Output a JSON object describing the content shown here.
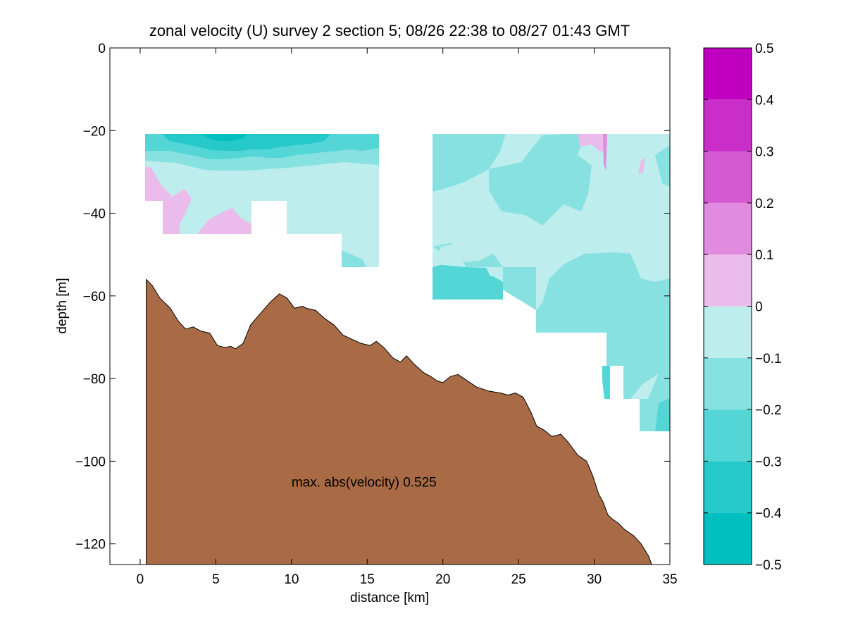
{
  "chart_data": {
    "type": "contour",
    "title": "zonal velocity (U) survey 2 section 5; 08/26 22:38 to 08/27 01:43 GMT",
    "xlabel": "distance [km]",
    "ylabel": "depth [m]",
    "xlim": [
      -2,
      35
    ],
    "ylim": [
      -125,
      0
    ],
    "xticks": [
      0,
      5,
      10,
      15,
      20,
      25,
      30,
      35
    ],
    "yticks": [
      0,
      -20,
      -40,
      -60,
      -80,
      -100,
      -120
    ],
    "annotation": {
      "text": "max. abs(velocity) 0.525",
      "x": 10,
      "y": -105
    },
    "colorbar": {
      "ticks": [
        0.5,
        0.4,
        0.3,
        0.2,
        0.1,
        0,
        -0.1,
        -0.2,
        -0.3,
        -0.4,
        -0.5
      ],
      "levels": [
        {
          "from": -0.5,
          "to": -0.4,
          "color": "#00bfbf"
        },
        {
          "from": -0.4,
          "to": -0.3,
          "color": "#26c9c9"
        },
        {
          "from": -0.3,
          "to": -0.2,
          "color": "#55d6d6"
        },
        {
          "from": -0.2,
          "to": -0.1,
          "color": "#88e1e1"
        },
        {
          "from": -0.1,
          "to": 0,
          "color": "#bdeded"
        },
        {
          "from": 0,
          "to": 0.1,
          "color": "#ebbbeb"
        },
        {
          "from": 0.1,
          "to": 0.2,
          "color": "#e08ae0"
        },
        {
          "from": 0.2,
          "to": 0.3,
          "color": "#d35ad3"
        },
        {
          "from": 0.3,
          "to": 0.4,
          "color": "#c92ec9"
        },
        {
          "from": 0.4,
          "to": 0.5,
          "color": "#bf00bf"
        }
      ]
    },
    "seafloor_color": "#a96b45",
    "bathymetry": [
      [
        0.4,
        -56
      ],
      [
        0.8,
        -57.5
      ],
      [
        1.3,
        -60.5
      ],
      [
        2.0,
        -63
      ],
      [
        2.5,
        -66
      ],
      [
        3.0,
        -68
      ],
      [
        3.5,
        -67.5
      ],
      [
        4.0,
        -68.5
      ],
      [
        4.6,
        -69
      ],
      [
        5.1,
        -72
      ],
      [
        5.6,
        -72.5
      ],
      [
        6.0,
        -72.2
      ],
      [
        6.3,
        -72.8
      ],
      [
        6.8,
        -71.5
      ],
      [
        7.3,
        -67
      ],
      [
        8.0,
        -64
      ],
      [
        8.6,
        -61.5
      ],
      [
        9.2,
        -59.5
      ],
      [
        9.7,
        -60.5
      ],
      [
        10.2,
        -63
      ],
      [
        10.7,
        -62.5
      ],
      [
        11.0,
        -63
      ],
      [
        11.6,
        -63.5
      ],
      [
        12.2,
        -65.5
      ],
      [
        12.8,
        -67
      ],
      [
        13.4,
        -69.5
      ],
      [
        14.0,
        -70.5
      ],
      [
        14.6,
        -71.5
      ],
      [
        15.2,
        -72
      ],
      [
        15.6,
        -71
      ],
      [
        16.1,
        -72.5
      ],
      [
        16.7,
        -75
      ],
      [
        17.2,
        -76
      ],
      [
        17.6,
        -74.5
      ],
      [
        18.1,
        -76.5
      ],
      [
        18.7,
        -78.5
      ],
      [
        19.2,
        -79.5
      ],
      [
        19.6,
        -80.5
      ],
      [
        20.0,
        -81
      ],
      [
        20.5,
        -79.5
      ],
      [
        21.0,
        -79
      ],
      [
        21.6,
        -80.5
      ],
      [
        22.2,
        -82
      ],
      [
        23.0,
        -83
      ],
      [
        23.8,
        -83.5
      ],
      [
        24.3,
        -84
      ],
      [
        24.8,
        -83.5
      ],
      [
        25.3,
        -84.5
      ],
      [
        25.8,
        -88
      ],
      [
        26.2,
        -91.5
      ],
      [
        26.7,
        -92.5
      ],
      [
        27.2,
        -94
      ],
      [
        27.8,
        -93.5
      ],
      [
        28.3,
        -95.5
      ],
      [
        28.9,
        -98.5
      ],
      [
        29.5,
        -100
      ],
      [
        29.9,
        -103.5
      ],
      [
        30.3,
        -108
      ],
      [
        30.6,
        -110
      ],
      [
        30.9,
        -113
      ],
      [
        31.2,
        -114
      ],
      [
        31.6,
        -115
      ],
      [
        32.0,
        -116.5
      ],
      [
        32.6,
        -118
      ],
      [
        33.1,
        -120
      ],
      [
        33.6,
        -123
      ],
      [
        33.8,
        -125
      ]
    ]
  }
}
